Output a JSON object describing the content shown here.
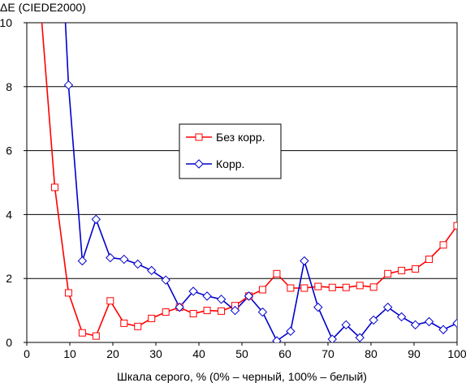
{
  "chart_data": {
    "type": "line",
    "title": "",
    "ylabel": "ΔE (CIEDE2000)",
    "xlabel": "Шкала серого, % (0% – черный, 100% – белый)",
    "xlim": [
      0,
      100
    ],
    "ylim": [
      0,
      10
    ],
    "x_ticks": [
      0,
      10,
      20,
      30,
      40,
      50,
      60,
      70,
      80,
      90,
      100
    ],
    "y_ticks": [
      0,
      2,
      4,
      6,
      8,
      10
    ],
    "grid": "horizontal",
    "legend_position": "center",
    "series": [
      {
        "name": "Без корр.",
        "color": "#ff0000",
        "marker": "square",
        "x": [
          3.2,
          6.5,
          9.7,
          12.9,
          16.1,
          19.4,
          22.6,
          25.8,
          29.0,
          32.3,
          35.5,
          38.7,
          41.9,
          45.2,
          48.4,
          51.6,
          54.8,
          58.1,
          61.3,
          64.5,
          67.7,
          71.0,
          74.2,
          77.4,
          80.6,
          83.9,
          87.1,
          90.3,
          93.5,
          96.8,
          100
        ],
        "y": [
          10.5,
          4.85,
          1.55,
          0.3,
          0.2,
          1.3,
          0.6,
          0.5,
          0.75,
          0.95,
          1.1,
          0.9,
          1.0,
          0.98,
          1.15,
          1.45,
          1.65,
          2.15,
          1.7,
          1.7,
          1.75,
          1.72,
          1.72,
          1.78,
          1.73,
          2.15,
          2.25,
          2.3,
          2.6,
          3.05,
          3.65
        ]
      },
      {
        "name": "Корр.",
        "color": "#0000cc",
        "marker": "diamond",
        "x": [
          8.8,
          9.7,
          12.9,
          16.1,
          19.4,
          22.6,
          25.8,
          29.0,
          32.3,
          35.5,
          38.7,
          41.9,
          45.2,
          48.4,
          51.6,
          54.8,
          58.1,
          61.3,
          64.5,
          67.7,
          71.0,
          74.2,
          77.4,
          80.6,
          83.9,
          87.1,
          90.3,
          93.5,
          96.8,
          100
        ],
        "y": [
          10.5,
          8.05,
          2.55,
          3.85,
          2.65,
          2.6,
          2.45,
          2.25,
          1.95,
          1.1,
          1.6,
          1.45,
          1.35,
          1.0,
          1.45,
          0.95,
          0.05,
          0.35,
          2.55,
          1.1,
          0.1,
          0.55,
          0.15,
          0.7,
          1.1,
          0.8,
          0.55,
          0.65,
          0.4,
          0.6
        ]
      }
    ]
  }
}
